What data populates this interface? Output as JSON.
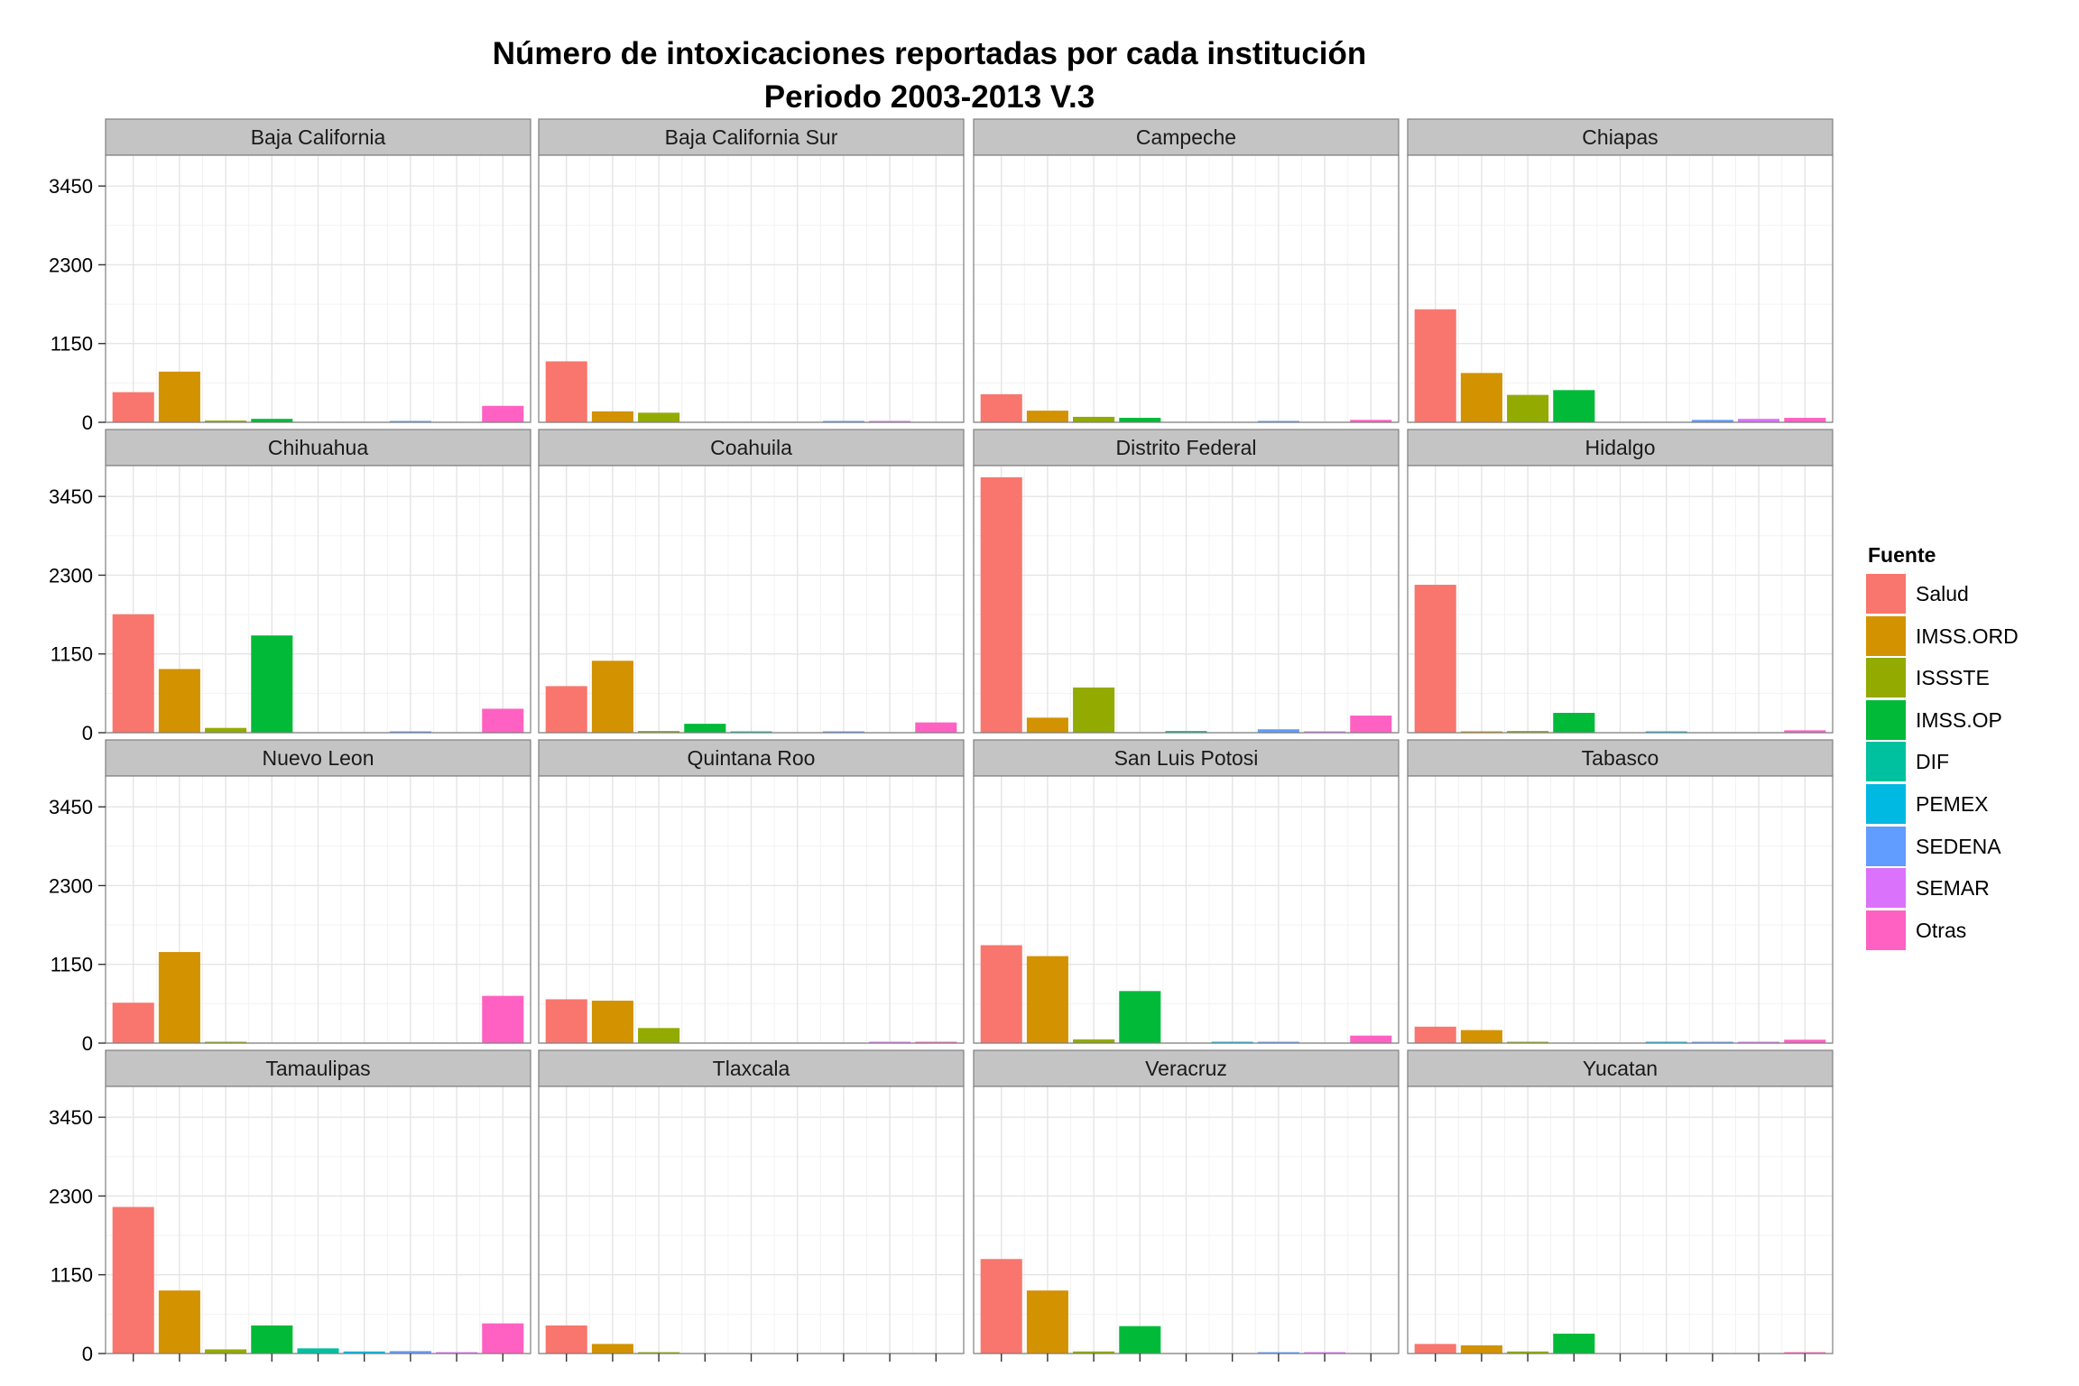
{
  "chart_data": {
    "type": "bar",
    "title": [
      "Número de intoxicaciones reportadas por cada institución",
      "Periodo 2003-2013 V.3"
    ],
    "xlabel": "",
    "ylabel": "",
    "ylim": [
      0,
      3900
    ],
    "yticks": [
      0,
      1150,
      2300,
      3450
    ],
    "facet_rows": 4,
    "facet_cols": 4,
    "grid": true,
    "legend": {
      "title": "Fuente",
      "position": "right",
      "entries": [
        "Salud",
        "IMSS.ORD",
        "ISSSTE",
        "IMSS.OP",
        "DIF",
        "PEMEX",
        "SEDENA",
        "SEMAR",
        "Otras"
      ],
      "colors": [
        "#F8766D",
        "#D39200",
        "#93AA00",
        "#00BA38",
        "#00C19F",
        "#00B9E3",
        "#619CFF",
        "#DB72FB",
        "#FF61C3"
      ]
    },
    "categories": [
      "Salud",
      "IMSS.ORD",
      "ISSSTE",
      "IMSS.OP",
      "DIF",
      "PEMEX",
      "SEDENA",
      "SEMAR",
      "Otras"
    ],
    "facets": [
      {
        "name": "Baja California",
        "values": [
          440,
          740,
          25,
          50,
          0,
          0,
          8,
          0,
          240
        ]
      },
      {
        "name": "Baja California Sur",
        "values": [
          890,
          160,
          140,
          0,
          0,
          0,
          8,
          8,
          0
        ]
      },
      {
        "name": "Campeche",
        "values": [
          410,
          170,
          80,
          65,
          0,
          0,
          8,
          0,
          35
        ]
      },
      {
        "name": "Chiapas",
        "values": [
          1650,
          720,
          400,
          470,
          0,
          0,
          35,
          50,
          65
        ]
      },
      {
        "name": "Chihuahua",
        "values": [
          1730,
          930,
          70,
          1420,
          0,
          0,
          8,
          0,
          350
        ]
      },
      {
        "name": "Coahuila",
        "values": [
          680,
          1050,
          25,
          130,
          8,
          0,
          8,
          0,
          150
        ]
      },
      {
        "name": "Distrito Federal",
        "values": [
          3730,
          220,
          660,
          0,
          25,
          0,
          50,
          20,
          250
        ]
      },
      {
        "name": "Hidalgo",
        "values": [
          2160,
          15,
          25,
          290,
          0,
          8,
          0,
          0,
          35
        ]
      },
      {
        "name": "Nuevo Leon",
        "values": [
          590,
          1330,
          15,
          0,
          0,
          0,
          0,
          0,
          690
        ]
      },
      {
        "name": "Quintana Roo",
        "values": [
          640,
          620,
          220,
          0,
          0,
          0,
          0,
          8,
          8
        ]
      },
      {
        "name": "San Luis Potosi",
        "values": [
          1430,
          1270,
          55,
          760,
          0,
          10,
          8,
          0,
          110
        ]
      },
      {
        "name": "Tabasco",
        "values": [
          240,
          190,
          15,
          0,
          0,
          8,
          15,
          8,
          50
        ]
      },
      {
        "name": "Tamaulipas",
        "values": [
          2140,
          920,
          60,
          410,
          75,
          30,
          35,
          8,
          440
        ]
      },
      {
        "name": "Tlaxcala",
        "values": [
          410,
          140,
          8,
          0,
          0,
          0,
          0,
          0,
          0
        ]
      },
      {
        "name": "Veracruz",
        "values": [
          1380,
          920,
          30,
          400,
          0,
          0,
          15,
          15,
          0
        ]
      },
      {
        "name": "Yucatan",
        "values": [
          140,
          120,
          30,
          290,
          0,
          0,
          0,
          0,
          15
        ]
      }
    ]
  }
}
